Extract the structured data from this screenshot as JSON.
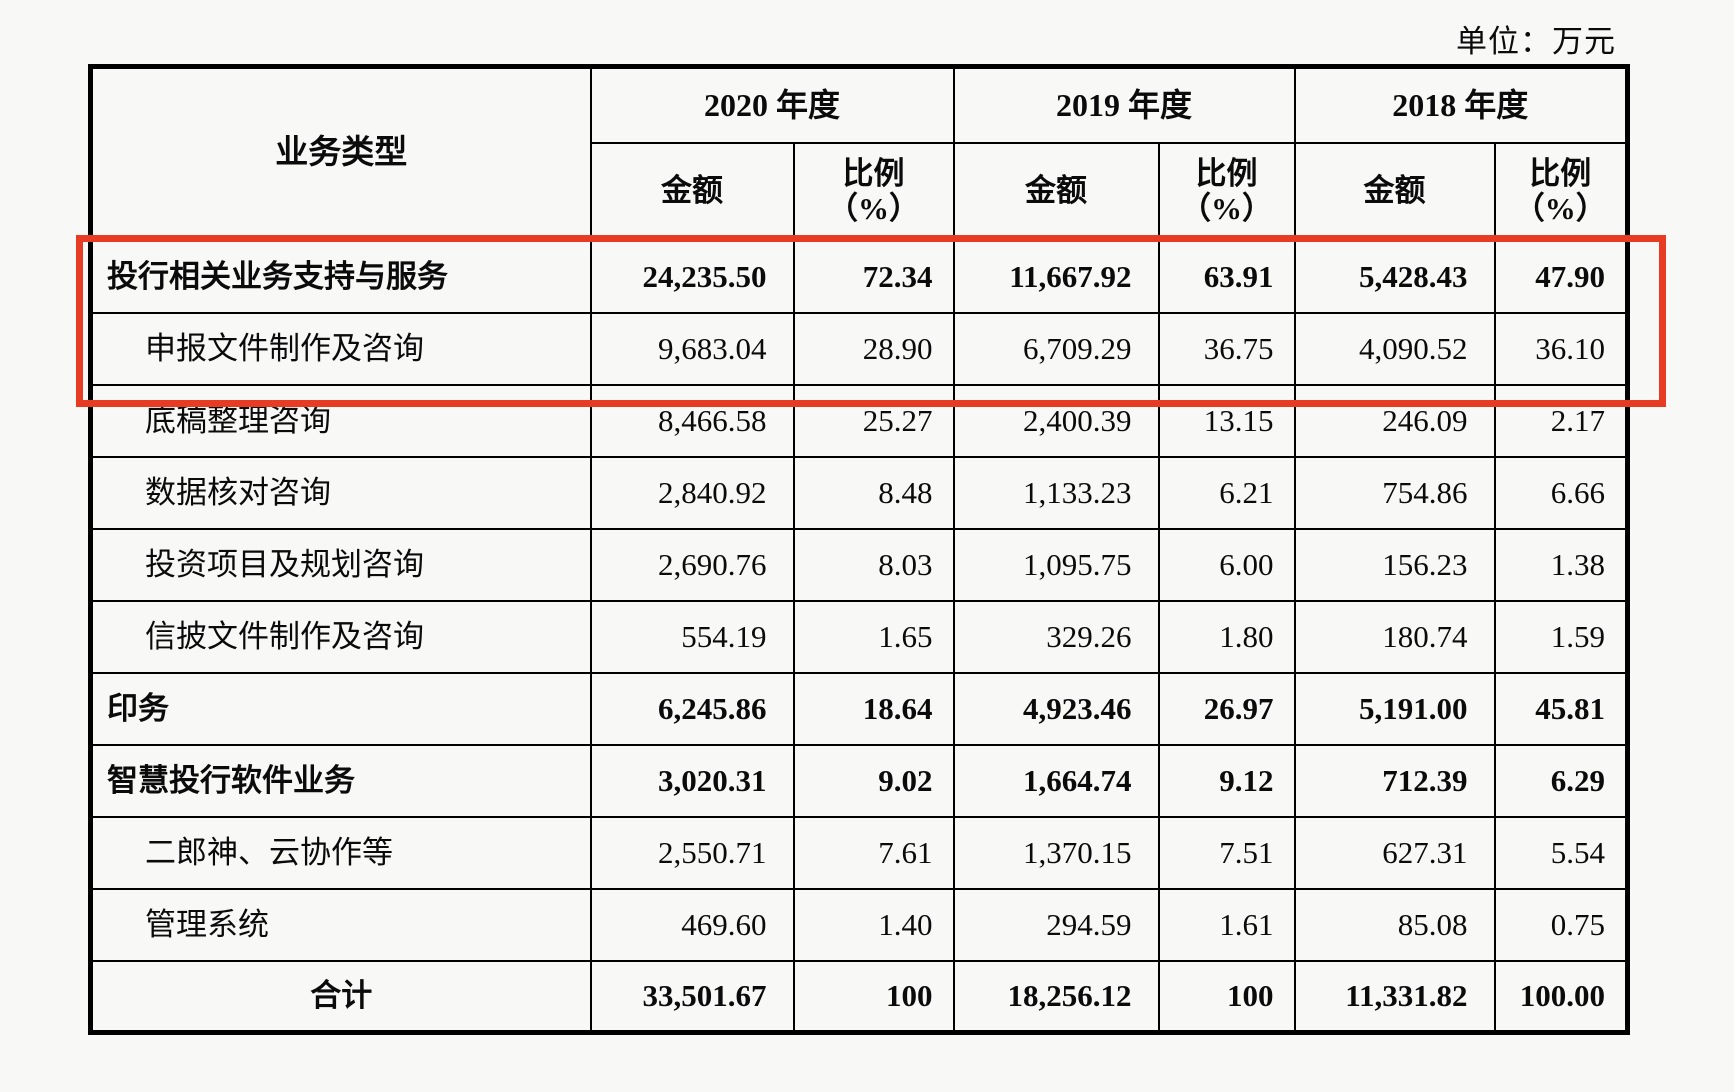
{
  "page": {
    "unit_label": "单位：万元"
  },
  "table": {
    "corner_header": "业务类型",
    "years": [
      "2020 年度",
      "2019 年度",
      "2018 年度"
    ],
    "amount_header": "金额",
    "ratio_header_line1": "比例",
    "ratio_header_line2": "（%）",
    "highlight_color": "#e83b24",
    "rows": [
      {
        "label": "投行相关业务支持与服务",
        "level": "parent",
        "highlighted": true,
        "values": [
          "24,235.50",
          "72.34",
          "11,667.92",
          "63.91",
          "5,428.43",
          "47.90"
        ]
      },
      {
        "label": "申报文件制作及咨询",
        "level": "child",
        "highlighted": true,
        "values": [
          "9,683.04",
          "28.90",
          "6,709.29",
          "36.75",
          "4,090.52",
          "36.10"
        ]
      },
      {
        "label": "底稿整理咨询",
        "level": "child",
        "highlighted": false,
        "values": [
          "8,466.58",
          "25.27",
          "2,400.39",
          "13.15",
          "246.09",
          "2.17"
        ]
      },
      {
        "label": "数据核对咨询",
        "level": "child",
        "highlighted": false,
        "values": [
          "2,840.92",
          "8.48",
          "1,133.23",
          "6.21",
          "754.86",
          "6.66"
        ]
      },
      {
        "label": "投资项目及规划咨询",
        "level": "child",
        "highlighted": false,
        "values": [
          "2,690.76",
          "8.03",
          "1,095.75",
          "6.00",
          "156.23",
          "1.38"
        ]
      },
      {
        "label": "信披文件制作及咨询",
        "level": "child",
        "highlighted": false,
        "values": [
          "554.19",
          "1.65",
          "329.26",
          "1.80",
          "180.74",
          "1.59"
        ]
      },
      {
        "label": "印务",
        "level": "parent",
        "highlighted": false,
        "values": [
          "6,245.86",
          "18.64",
          "4,923.46",
          "26.97",
          "5,191.00",
          "45.81"
        ]
      },
      {
        "label": "智慧投行软件业务",
        "level": "parent",
        "highlighted": false,
        "values": [
          "3,020.31",
          "9.02",
          "1,664.74",
          "9.12",
          "712.39",
          "6.29"
        ]
      },
      {
        "label": "二郎神、云协作等",
        "level": "child",
        "highlighted": false,
        "values": [
          "2,550.71",
          "7.61",
          "1,370.15",
          "7.51",
          "627.31",
          "5.54"
        ]
      },
      {
        "label": "管理系统",
        "level": "child",
        "highlighted": false,
        "values": [
          "469.60",
          "1.40",
          "294.59",
          "1.61",
          "85.08",
          "0.75"
        ]
      },
      {
        "label": "合计",
        "level": "total",
        "highlighted": false,
        "values": [
          "33,501.67",
          "100",
          "18,256.12",
          "100",
          "11,331.82",
          "100.00"
        ]
      }
    ]
  }
}
